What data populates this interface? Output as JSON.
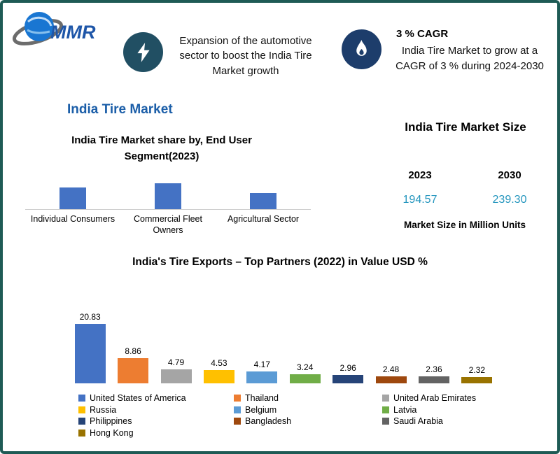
{
  "page": {
    "border_color": "#1e5b55",
    "background": "#ffffff"
  },
  "header": {
    "logo_text": "MMR",
    "highlight1": {
      "icon": "lightning-icon",
      "text": "Expansion of the automotive sector to boost the India Tire Market growth"
    },
    "highlight2": {
      "icon": "flame-icon",
      "title": "3 % CAGR",
      "text": "India Tire Market to grow at a CAGR of 3 % during 2024-2030"
    }
  },
  "market_share": {
    "section_title": "India Tire Market",
    "chart_title": "India Tire Market share by, End User Segment(2023)"
  },
  "market_size": {
    "title": "India Tire Market Size",
    "columns": [
      {
        "year": "2023",
        "value": "194.57"
      },
      {
        "year": "2030",
        "value": "239.30"
      }
    ],
    "footnote": "Market Size in Million Units",
    "value_color": "#2596be"
  },
  "exports": {
    "title": "India's Tire Exports – Top Partners (2022) in Value USD %"
  },
  "chart_data": [
    {
      "type": "bar",
      "title": "India Tire Market share by, End User Segment(2023)",
      "categories": [
        "Individual Consumers",
        "Commercial Fleet Owners",
        "Agricultural Sector"
      ],
      "values": [
        31,
        37,
        23
      ],
      "bar_color": "#4472C4",
      "ylabel": "",
      "xlabel": "",
      "grid": false,
      "data_labels": false
    },
    {
      "type": "bar",
      "title": "India's Tire Exports – Top Partners (2022) in Value USD %",
      "categories": [
        "United States of America",
        "Thailand",
        "United Arab Emirates",
        "Russia",
        "Belgium",
        "Latvia",
        "Philippines",
        "Bangladesh",
        "Saudi Arabia",
        "Hong Kong"
      ],
      "values": [
        20.83,
        8.86,
        4.79,
        4.53,
        4.17,
        3.24,
        2.96,
        2.48,
        2.36,
        2.32
      ],
      "colors": [
        "#4472C4",
        "#ED7D31",
        "#A5A5A5",
        "#FFC000",
        "#5B9BD5",
        "#70AD47",
        "#264478",
        "#9E480E",
        "#636363",
        "#997300"
      ],
      "ylim": [
        0,
        22
      ],
      "grid": false,
      "data_labels": true,
      "legend_position": "bottom"
    }
  ]
}
